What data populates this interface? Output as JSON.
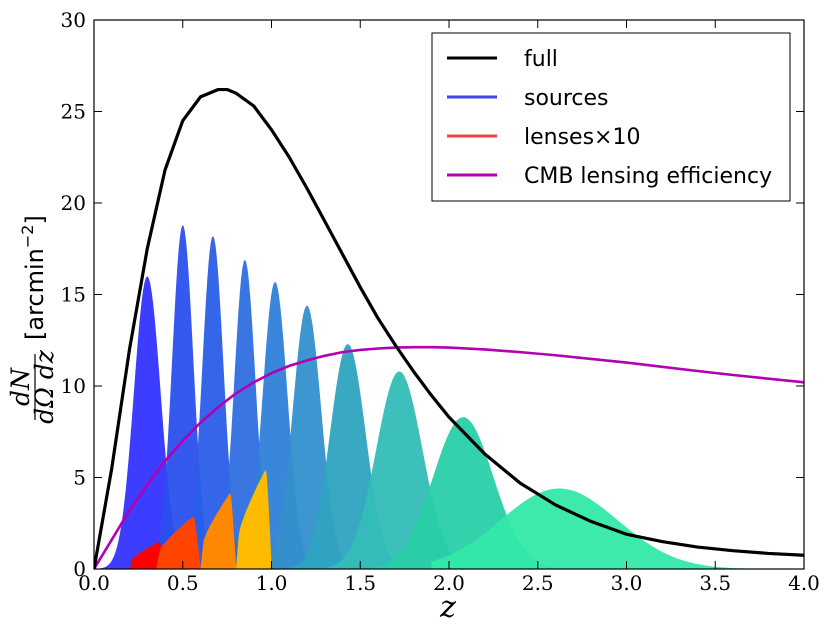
{
  "chart_data": {
    "type": "area",
    "xlabel": "z",
    "ylabel": {
      "numerator": "dN",
      "denominator": "dΩ dz",
      "unit_open": "[arcmin",
      "unit_exponent": "−2",
      "unit_close": "]"
    },
    "xlim": [
      0.0,
      4.0
    ],
    "ylim": [
      0,
      30
    ],
    "xticks": [
      "0.0",
      "0.5",
      "1.0",
      "1.5",
      "2.0",
      "2.5",
      "3.0",
      "3.5",
      "4.0"
    ],
    "yticks": [
      "0",
      "5",
      "10",
      "15",
      "20",
      "25",
      "30"
    ],
    "legend_position": "top-right",
    "legend": [
      {
        "label": "full",
        "color": "#000000"
      },
      {
        "label": "sources",
        "color": "#4444ee"
      },
      {
        "label": "lenses×10",
        "color": "#ee4444"
      },
      {
        "label": "CMB lensing efficiency",
        "color": "#b300b3"
      }
    ],
    "full_curve": {
      "name": "full",
      "color": "#000000",
      "points": [
        [
          0.0,
          0.0
        ],
        [
          0.1,
          5.5
        ],
        [
          0.2,
          12.0
        ],
        [
          0.3,
          17.5
        ],
        [
          0.4,
          21.8
        ],
        [
          0.5,
          24.5
        ],
        [
          0.6,
          25.8
        ],
        [
          0.7,
          26.2
        ],
        [
          0.75,
          26.2
        ],
        [
          0.8,
          26.0
        ],
        [
          0.9,
          25.3
        ],
        [
          1.0,
          24.0
        ],
        [
          1.1,
          22.5
        ],
        [
          1.2,
          20.8
        ],
        [
          1.3,
          19.0
        ],
        [
          1.4,
          17.2
        ],
        [
          1.5,
          15.4
        ],
        [
          1.6,
          13.7
        ],
        [
          1.7,
          12.2
        ],
        [
          1.8,
          10.8
        ],
        [
          1.9,
          9.5
        ],
        [
          2.0,
          8.3
        ],
        [
          2.2,
          6.3
        ],
        [
          2.4,
          4.7
        ],
        [
          2.6,
          3.5
        ],
        [
          2.8,
          2.6
        ],
        [
          3.0,
          1.9
        ],
        [
          3.2,
          1.5
        ],
        [
          3.4,
          1.2
        ],
        [
          3.6,
          1.0
        ],
        [
          3.8,
          0.85
        ],
        [
          4.0,
          0.75
        ]
      ]
    },
    "cmb_curve": {
      "name": "CMB lensing efficiency",
      "color": "#b300b3",
      "points": [
        [
          0.0,
          0.0
        ],
        [
          0.1,
          1.6
        ],
        [
          0.2,
          3.2
        ],
        [
          0.3,
          4.6
        ],
        [
          0.4,
          5.9
        ],
        [
          0.5,
          7.0
        ],
        [
          0.6,
          8.0
        ],
        [
          0.7,
          8.85
        ],
        [
          0.8,
          9.6
        ],
        [
          0.9,
          10.2
        ],
        [
          1.0,
          10.7
        ],
        [
          1.1,
          11.1
        ],
        [
          1.2,
          11.4
        ],
        [
          1.3,
          11.65
        ],
        [
          1.4,
          11.85
        ],
        [
          1.5,
          11.97
        ],
        [
          1.6,
          12.05
        ],
        [
          1.7,
          12.1
        ],
        [
          1.8,
          12.12
        ],
        [
          1.9,
          12.12
        ],
        [
          2.0,
          12.1
        ],
        [
          2.2,
          12.0
        ],
        [
          2.4,
          11.85
        ],
        [
          2.6,
          11.68
        ],
        [
          2.8,
          11.48
        ],
        [
          3.0,
          11.28
        ],
        [
          3.2,
          11.05
        ],
        [
          3.4,
          10.82
        ],
        [
          3.6,
          10.6
        ],
        [
          3.8,
          10.4
        ],
        [
          4.0,
          10.2
        ]
      ]
    },
    "source_bins": [
      {
        "center": 0.3,
        "peak": 16.0,
        "sigma": 0.075,
        "lo": 0.0,
        "hi": 0.65,
        "color": "#3333ff"
      },
      {
        "center": 0.5,
        "peak": 18.8,
        "sigma": 0.06,
        "lo": 0.25,
        "hi": 0.8,
        "color": "#2a4fee"
      },
      {
        "center": 0.67,
        "peak": 18.2,
        "sigma": 0.06,
        "lo": 0.42,
        "hi": 0.95,
        "color": "#2a5ee8"
      },
      {
        "center": 0.85,
        "peak": 16.9,
        "sigma": 0.06,
        "lo": 0.58,
        "hi": 1.15,
        "color": "#2f6fe0"
      },
      {
        "center": 1.02,
        "peak": 15.7,
        "sigma": 0.07,
        "lo": 0.72,
        "hi": 1.35,
        "color": "#2f80d8"
      },
      {
        "center": 1.2,
        "peak": 14.4,
        "sigma": 0.08,
        "lo": 0.88,
        "hi": 1.58,
        "color": "#3390cc"
      },
      {
        "center": 1.43,
        "peak": 12.3,
        "sigma": 0.1,
        "lo": 1.05,
        "hi": 1.9,
        "color": "#2ea3c0"
      },
      {
        "center": 1.72,
        "peak": 10.8,
        "sigma": 0.13,
        "lo": 1.25,
        "hi": 2.3,
        "color": "#33bdb8"
      },
      {
        "center": 2.08,
        "peak": 8.3,
        "sigma": 0.17,
        "lo": 1.5,
        "hi": 2.85,
        "color": "#28cfa8"
      },
      {
        "center": 2.62,
        "peak": 4.4,
        "sigma": 0.33,
        "lo": 1.9,
        "hi": 4.0,
        "color": "#33e8a6"
      }
    ],
    "lens_bins": [
      {
        "lo": 0.2,
        "hi": 0.4,
        "peak": 1.5,
        "color": "#ff0000"
      },
      {
        "lo": 0.35,
        "hi": 0.6,
        "peak": 2.9,
        "color": "#ff4400"
      },
      {
        "lo": 0.6,
        "hi": 0.8,
        "peak": 4.2,
        "color": "#ff8800"
      },
      {
        "lo": 0.8,
        "hi": 1.0,
        "peak": 5.5,
        "color": "#ffbb00"
      }
    ]
  }
}
